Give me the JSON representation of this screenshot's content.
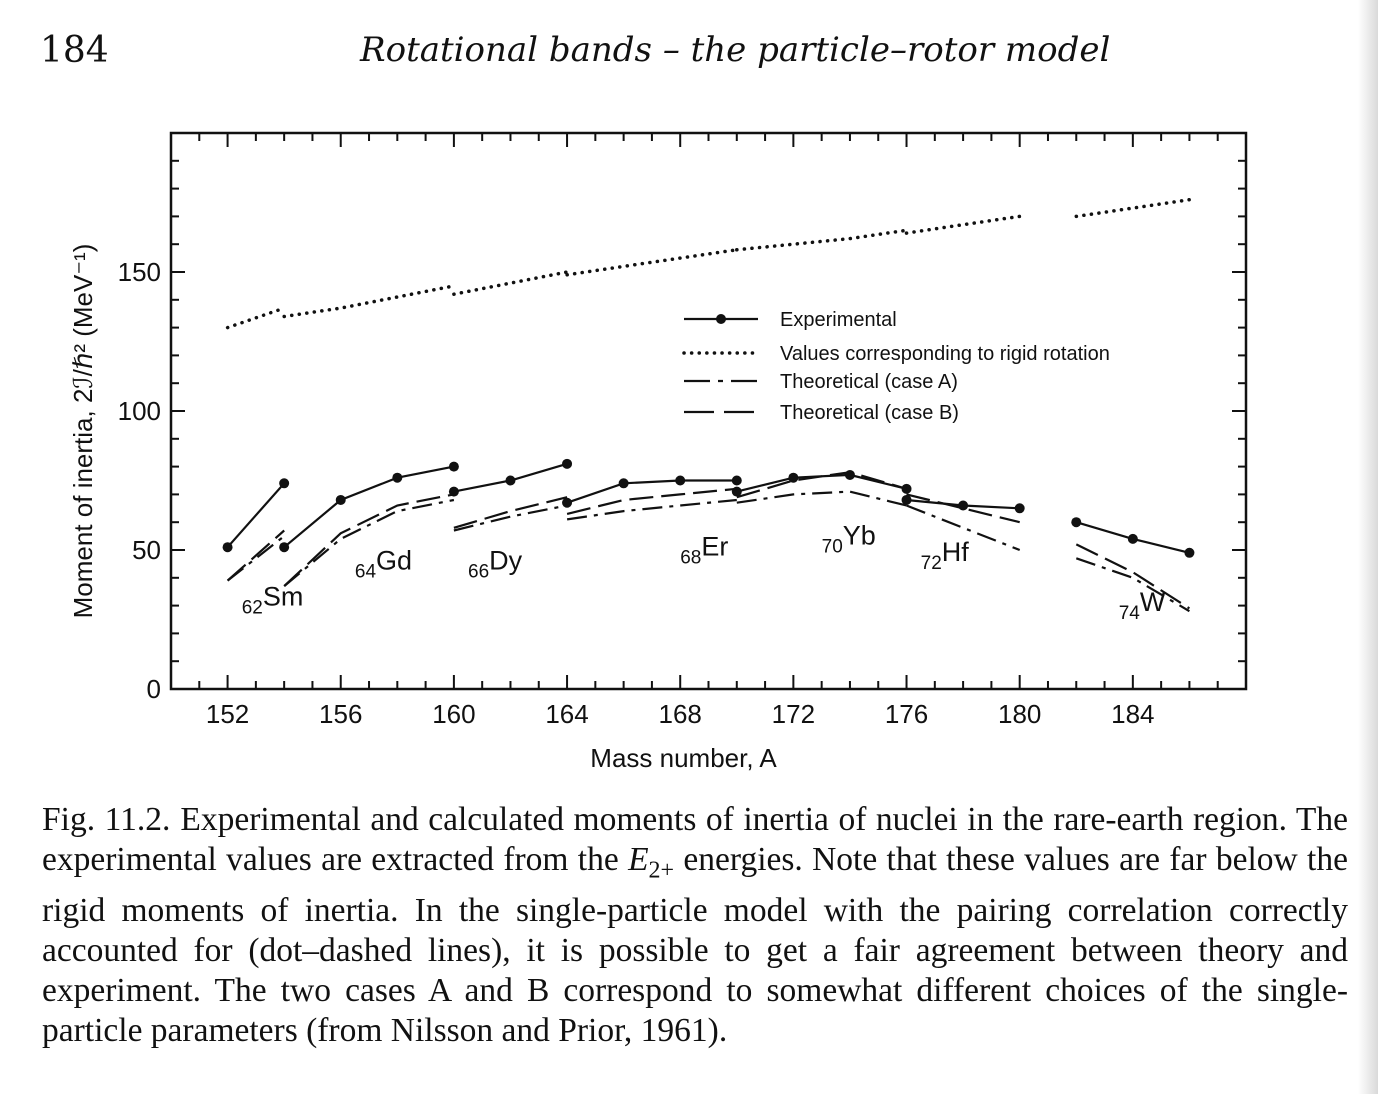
{
  "header": {
    "page_number": "184",
    "running_head": "Rotational bands – the particle–rotor model"
  },
  "chart_data": {
    "type": "line",
    "xlabel": "Mass number, A",
    "ylabel": "Moment of inertia, 2ℐ/ℏ² (MeV⁻¹)",
    "xlim": [
      150,
      188
    ],
    "ylim": [
      0,
      200
    ],
    "x_ticks": [
      "152",
      "156",
      "160",
      "164",
      "168",
      "172",
      "176",
      "180",
      "184"
    ],
    "y_ticks": [
      "0",
      "50",
      "100",
      "150"
    ],
    "legend": {
      "placement": "center",
      "entries": [
        {
          "style": "solid-with-dots",
          "label": "Experimental"
        },
        {
          "style": "dotted",
          "label": "Values corresponding to rigid rotation"
        },
        {
          "style": "dash-dot",
          "label": "Theoretical (case A)"
        },
        {
          "style": "dashed",
          "label": "Theoretical (case B)"
        }
      ]
    },
    "element_labels": [
      {
        "Z": "62",
        "symbol": "Sm",
        "x": 152.5,
        "y": 30
      },
      {
        "Z": "64",
        "symbol": "Gd",
        "x": 156.5,
        "y": 43
      },
      {
        "Z": "66",
        "symbol": "Dy",
        "x": 160.5,
        "y": 43
      },
      {
        "Z": "68",
        "symbol": "Er",
        "x": 168.0,
        "y": 48
      },
      {
        "Z": "70",
        "symbol": "Yb",
        "x": 173.0,
        "y": 52
      },
      {
        "Z": "72",
        "symbol": "Hf",
        "x": 176.5,
        "y": 46
      },
      {
        "Z": "74",
        "symbol": "W",
        "x": 183.5,
        "y": 28
      }
    ],
    "series": [
      {
        "style": "experimental",
        "segments": [
          [
            [
              152,
              51
            ],
            [
              154,
              74
            ]
          ],
          [
            [
              154,
              51
            ],
            [
              156,
              68
            ],
            [
              158,
              76
            ],
            [
              160,
              80
            ]
          ],
          [
            [
              160,
              71
            ],
            [
              162,
              75
            ],
            [
              164,
              81
            ]
          ],
          [
            [
              164,
              67
            ],
            [
              166,
              74
            ],
            [
              168,
              75
            ],
            [
              170,
              75
            ]
          ],
          [
            [
              170,
              71
            ],
            [
              172,
              76
            ],
            [
              174,
              77
            ],
            [
              176,
              72
            ]
          ],
          [
            [
              176,
              68
            ],
            [
              178,
              66
            ],
            [
              180,
              65
            ]
          ],
          [
            [
              182,
              60
            ],
            [
              184,
              54
            ],
            [
              186,
              49
            ]
          ]
        ]
      },
      {
        "style": "rigid",
        "segments": [
          [
            [
              152,
              130
            ],
            [
              154,
              137
            ]
          ],
          [
            [
              154,
              134
            ],
            [
              156,
              137
            ],
            [
              158,
              141
            ],
            [
              160,
              145
            ]
          ],
          [
            [
              160,
              142
            ],
            [
              162,
              146
            ],
            [
              164,
              150
            ]
          ],
          [
            [
              164,
              149
            ],
            [
              166,
              152
            ],
            [
              168,
              155
            ],
            [
              170,
              158
            ]
          ],
          [
            [
              170,
              158
            ],
            [
              172,
              160
            ],
            [
              174,
              162
            ],
            [
              176,
              165
            ]
          ],
          [
            [
              176,
              164
            ],
            [
              178,
              167
            ],
            [
              180,
              170
            ]
          ],
          [
            [
              182,
              170
            ],
            [
              184,
              173
            ],
            [
              186,
              176
            ]
          ]
        ]
      },
      {
        "style": "caseA",
        "segments": [
          [
            [
              152,
              39
            ],
            [
              154,
              55
            ]
          ],
          [
            [
              154,
              37
            ],
            [
              156,
              54
            ],
            [
              158,
              64
            ],
            [
              160,
              68
            ]
          ],
          [
            [
              160,
              57
            ],
            [
              162,
              62
            ],
            [
              164,
              66
            ]
          ],
          [
            [
              164,
              61
            ],
            [
              166,
              64
            ],
            [
              168,
              66
            ],
            [
              170,
              68
            ]
          ],
          [
            [
              170,
              67
            ],
            [
              172,
              70
            ],
            [
              174,
              71
            ],
            [
              176,
              66
            ]
          ],
          [
            [
              176,
              66
            ],
            [
              178,
              58
            ],
            [
              180,
              50
            ]
          ],
          [
            [
              182,
              47
            ],
            [
              184,
              40
            ],
            [
              186,
              28
            ]
          ]
        ]
      },
      {
        "style": "caseB",
        "segments": [
          [
            [
              152,
              39
            ],
            [
              154,
              57
            ]
          ],
          [
            [
              154,
              37
            ],
            [
              156,
              56
            ],
            [
              158,
              66
            ],
            [
              160,
              70
            ]
          ],
          [
            [
              160,
              58
            ],
            [
              162,
              64
            ],
            [
              164,
              69
            ]
          ],
          [
            [
              164,
              63
            ],
            [
              166,
              68
            ],
            [
              168,
              70
            ],
            [
              170,
              72
            ]
          ],
          [
            [
              170,
              69
            ],
            [
              172,
              75
            ],
            [
              174,
              78
            ],
            [
              176,
              72
            ]
          ],
          [
            [
              176,
              70
            ],
            [
              178,
              65
            ],
            [
              180,
              60
            ]
          ],
          [
            [
              182,
              52
            ],
            [
              184,
              42
            ],
            [
              186,
              29
            ]
          ]
        ]
      }
    ]
  },
  "caption": {
    "label": "Fig. 11.2.",
    "text_before": "Experimental and calculated moments of inertia of nuclei in the rare-earth region. The experimental values are extracted from the ",
    "energy_symbol": "E",
    "energy_subscript": "2+",
    "text_after": " energies. Note that these values are far below the rigid moments of inertia. In the single-particle model with the pairing correlation correctly accounted for (dot–dashed lines), it is possible to get a fair agreement between theory and experiment. The two cases A and B correspond to somewhat different choices of the single-particle parameters (from Nilsson and Prior, 1961)."
  }
}
